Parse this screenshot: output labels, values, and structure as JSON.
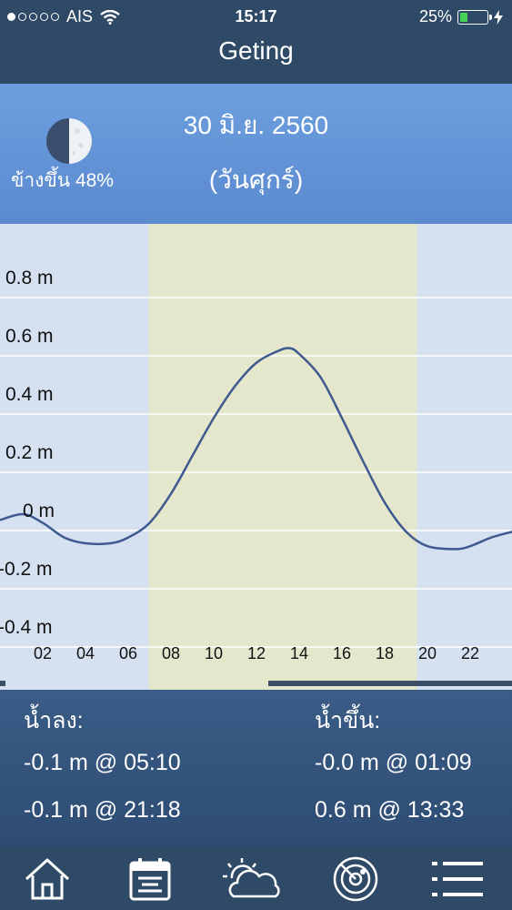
{
  "status_bar": {
    "carrier": "AIS",
    "time": "15:17",
    "battery": "25%",
    "signal_bars_filled": 1,
    "signal_bars_total": 5
  },
  "nav": {
    "title": "Geting"
  },
  "date_header": {
    "date": "30 มิ.ย. 2560",
    "weekday": "(วันศุกร์)",
    "moon_label": "ข้างขึ้น 48%",
    "moon_icon": "half-moon-icon"
  },
  "chart_data": {
    "type": "line",
    "title": "",
    "xlabel": "",
    "ylabel": "",
    "x_ticks": [
      "02",
      "04",
      "06",
      "08",
      "10",
      "12",
      "14",
      "16",
      "18",
      "20",
      "22"
    ],
    "y_ticks": [
      "0.8 m",
      "0.6 m",
      "0.4 m",
      "0.2 m",
      "0 m",
      "-0.2 m",
      "-0.4 m"
    ],
    "xlim": [
      0,
      24
    ],
    "ylim": [
      -0.5,
      0.9
    ],
    "daylight_range": [
      7,
      19.5
    ],
    "series": [
      {
        "x": [
          0,
          1.09,
          2,
          3,
          4,
          5.17,
          6,
          7,
          8,
          9,
          10,
          11,
          12,
          13,
          13.55,
          14,
          15,
          16,
          17,
          18,
          19,
          20,
          21.3,
          22,
          23,
          24
        ],
        "y": [
          -0.02,
          -0.0,
          -0.03,
          -0.08,
          -0.1,
          -0.1,
          -0.08,
          -0.03,
          0.07,
          0.2,
          0.33,
          0.44,
          0.52,
          0.56,
          0.57,
          0.55,
          0.47,
          0.33,
          0.18,
          0.04,
          -0.06,
          -0.11,
          -0.12,
          -0.11,
          -0.08,
          -0.06
        ]
      }
    ],
    "grid": true,
    "colors": {
      "line": "#3e5a8f",
      "daylight": "#e5e7cc",
      "night": "#d5e1f1"
    }
  },
  "summary": {
    "low_title": "น้ำลง:",
    "high_title": "น้ำขึ้น:",
    "low": [
      "-0.1 m @ 05:10",
      "-0.1 m @ 21:18"
    ],
    "high": [
      "-0.0 m @ 01:09",
      "0.6 m @ 13:33"
    ]
  },
  "tabbar": {
    "icons": [
      "home-icon",
      "calendar-icon",
      "weather-icon",
      "radar-icon",
      "menu-icon"
    ]
  }
}
